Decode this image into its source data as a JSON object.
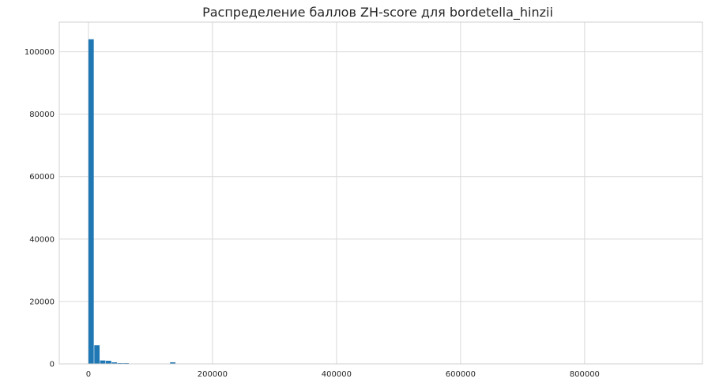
{
  "chart_data": {
    "type": "bar",
    "title": "Распределение баллов ZH-score для bordetella_hinzii",
    "xlabel": "",
    "ylabel": "",
    "grid": true,
    "xlim": [
      -47000,
      990000
    ],
    "ylim": [
      0,
      109500
    ],
    "x_ticks": [
      0,
      200000,
      400000,
      600000,
      800000
    ],
    "x_tick_labels": [
      "0",
      "200000",
      "400000",
      "600000",
      "800000"
    ],
    "y_ticks": [
      0,
      20000,
      40000,
      60000,
      80000,
      100000
    ],
    "y_tick_labels": [
      "0",
      "20000",
      "40000",
      "60000",
      "80000",
      "100000"
    ],
    "bin_width": 9400,
    "bins": [
      {
        "x0": 0,
        "value": 104000
      },
      {
        "x0": 9400,
        "value": 6000
      },
      {
        "x0": 18800,
        "value": 1100
      },
      {
        "x0": 28200,
        "value": 1000
      },
      {
        "x0": 37600,
        "value": 500
      },
      {
        "x0": 47000,
        "value": 150
      },
      {
        "x0": 56400,
        "value": 50
      },
      {
        "x0": 131600,
        "value": 500
      }
    ],
    "bar_color": "#1f77b4"
  }
}
